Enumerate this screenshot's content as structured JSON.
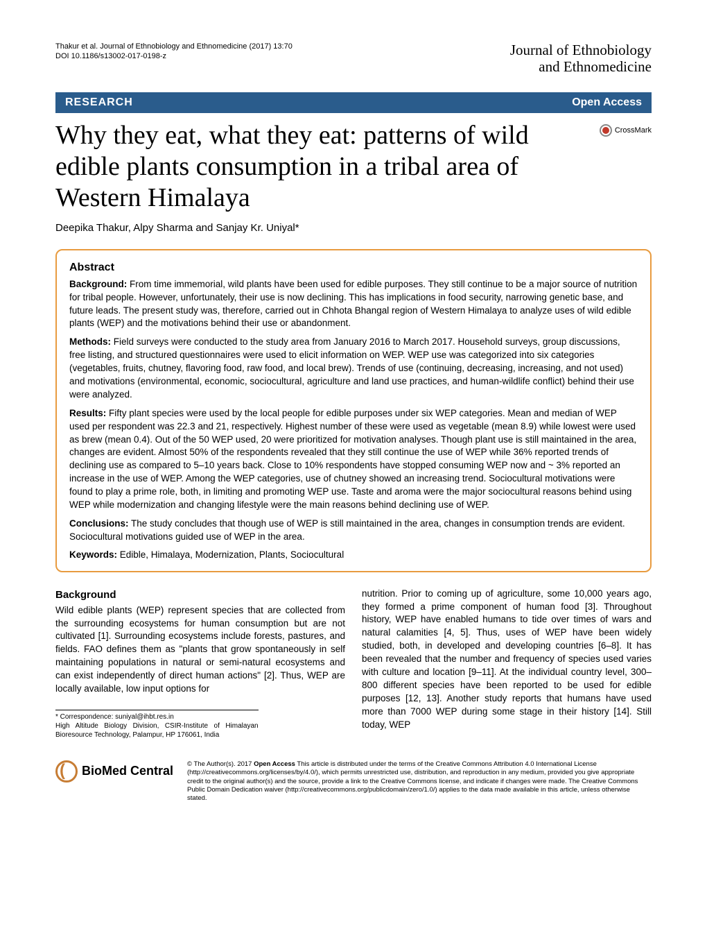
{
  "header": {
    "citation_line1": "Thakur et al. Journal of Ethnobiology and Ethnomedicine  (2017) 13:70",
    "citation_line2": "DOI 10.1186/s13002-017-0198-z",
    "journal_line1": "Journal of Ethnobiology",
    "journal_line2": "and Ethnomedicine"
  },
  "bar": {
    "research": "RESEARCH",
    "open_access": "Open Access"
  },
  "crossmark": "CrossMark",
  "title": "Why they eat, what they eat: patterns of wild edible plants consumption in a tribal area of Western Himalaya",
  "authors": "Deepika Thakur, Alpy Sharma and Sanjay Kr. Uniyal*",
  "abstract": {
    "heading": "Abstract",
    "background_label": "Background:",
    "background": " From time immemorial, wild plants have been used for edible purposes. They still continue to be a major source of nutrition for tribal people. However, unfortunately, their use is now declining. This has implications in food security, narrowing genetic base, and future leads. The present study was, therefore, carried out in Chhota Bhangal region of Western Himalaya to analyze uses of wild edible plants (WEP) and the motivations behind their use or abandonment.",
    "methods_label": "Methods:",
    "methods": " Field surveys were conducted to the study area from January 2016 to March 2017. Household surveys, group discussions, free listing, and structured questionnaires were used to elicit information on WEP. WEP use was categorized into six categories (vegetables, fruits, chutney, flavoring food, raw food, and local brew). Trends of use (continuing, decreasing, increasing, and not used) and motivations (environmental, economic, sociocultural, agriculture and land use practices, and human-wildlife conflict) behind their use were analyzed.",
    "results_label": "Results:",
    "results": " Fifty plant species were used by the local people for edible purposes under six WEP categories. Mean and median of WEP used per respondent was 22.3 and 21, respectively. Highest number of these were used as vegetable (mean 8.9) while lowest were used as brew (mean 0.4). Out of the 50 WEP used, 20 were prioritized for motivation analyses. Though plant use is still maintained in the area, changes are evident. Almost 50% of the respondents revealed that they still continue the use of WEP while 36% reported trends of declining use as compared to 5–10 years back. Close to 10% respondents have stopped consuming WEP now and ~ 3% reported an increase in the use of WEP. Among the WEP categories, use of chutney showed an increasing trend. Sociocultural motivations were found to play a prime role, both, in limiting and promoting WEP use. Taste and aroma were the major sociocultural reasons behind using WEP while modernization and changing lifestyle were the main reasons behind declining use of WEP.",
    "conclusions_label": "Conclusions:",
    "conclusions": " The study concludes that though use of WEP is still maintained in the area, changes in consumption trends are evident. Sociocultural motivations guided use of WEP in the area.",
    "keywords_label": "Keywords:",
    "keywords": " Edible, Himalaya, Modernization, Plants, Sociocultural"
  },
  "body": {
    "bg_heading": "Background",
    "left_para": "Wild edible plants (WEP) represent species that are collected from the surrounding ecosystems for human consumption but are not cultivated [1]. Surrounding ecosystems include forests, pastures, and fields. FAO defines them as \"plants that grow spontaneously in self maintaining populations in natural or semi-natural ecosystems and can exist independently of direct human actions\" [2]. Thus, WEP are locally available, low input options for",
    "right_para": "nutrition. Prior to coming up of agriculture, some 10,000 years ago, they formed a prime component of human food [3]. Throughout history, WEP have enabled humans to tide over times of wars and natural calamities [4, 5]. Thus, uses of WEP have been widely studied, both, in developed and developing countries [6–8]. It has been revealed that the number and frequency of species used varies with culture and location [9–11]. At the individual country level, 300–800 different species have been reported to be used for edible purposes [12, 13]. Another study reports that humans have used more than 7000 WEP during some stage in their history [14]. Still today, WEP"
  },
  "correspondence": {
    "line1": "* Correspondence: suniyal@ihbt.res.in",
    "line2": "High Altitude Biology Division, CSIR-Institute of Himalayan Bioresource Technology, Palampur, HP 176061, India"
  },
  "footer": {
    "bmc": "BioMed Central",
    "license_bold": "Open Access",
    "license_prefix": "© The Author(s). 2017 ",
    "license_rest": " This article is distributed under the terms of the Creative Commons Attribution 4.0 International License (http://creativecommons.org/licenses/by/4.0/), which permits unrestricted use, distribution, and reproduction in any medium, provided you give appropriate credit to the original author(s) and the source, provide a link to the Creative Commons license, and indicate if changes were made. The Creative Commons Public Domain Dedication waiver (http://creativecommons.org/publicdomain/zero/1.0/) applies to the data made available in this article, unless otherwise stated."
  }
}
